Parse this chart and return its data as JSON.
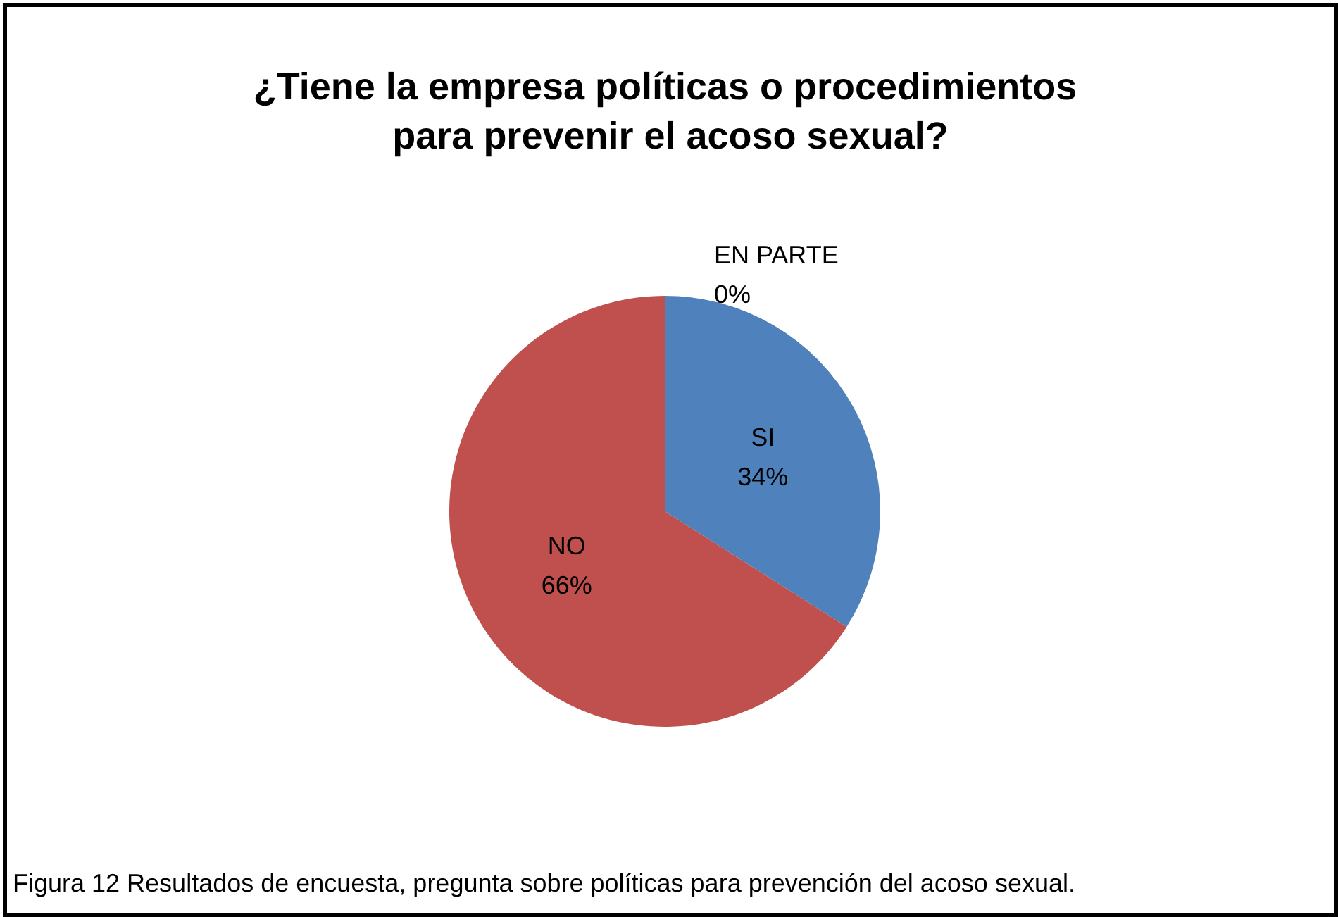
{
  "chart_data": {
    "type": "pie",
    "title": "¿Tiene la empresa políticas o procedimientos para prevenir el acoso sexual?",
    "categories": [
      "SI",
      "NO",
      "EN PARTE"
    ],
    "values": [
      34,
      66,
      0
    ],
    "colors": [
      "#4f81bd",
      "#c0504d",
      "#9bbb59"
    ],
    "value_labels": [
      "34%",
      "66%",
      "0%"
    ],
    "annotations": [
      "Figura 12 Resultados de encuesta, pregunta sobre políticas para prevención del acoso sexual."
    ],
    "legend": false
  }
}
